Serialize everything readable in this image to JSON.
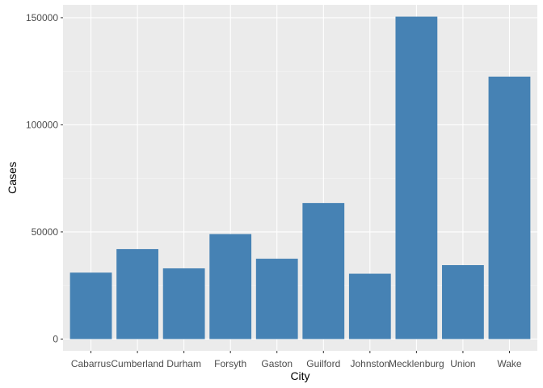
{
  "chart_data": {
    "type": "bar",
    "xlabel": "City",
    "ylabel": "Cases",
    "categories": [
      "Cabarrus",
      "Cumberland",
      "Durham",
      "Forsyth",
      "Gaston",
      "Guilford",
      "Johnston",
      "Mecklenburg",
      "Union",
      "Wake"
    ],
    "values": [
      31000,
      42000,
      33000,
      49000,
      37500,
      63500,
      30500,
      150500,
      34500,
      122500
    ],
    "ylim": [
      -5500,
      156000
    ],
    "yticks": [
      0,
      50000,
      100000,
      150000
    ],
    "ytick_labels": [
      "0",
      "50000",
      "100000",
      "150000"
    ],
    "grid": true,
    "legend": "none",
    "colors": {
      "bar": "#4682b4",
      "panel": "#ebebeb",
      "grid_major": "#ffffff",
      "grid_minor": "#f5f5f5",
      "tick": "#333333",
      "tick_text": "#4d4d4d"
    }
  }
}
